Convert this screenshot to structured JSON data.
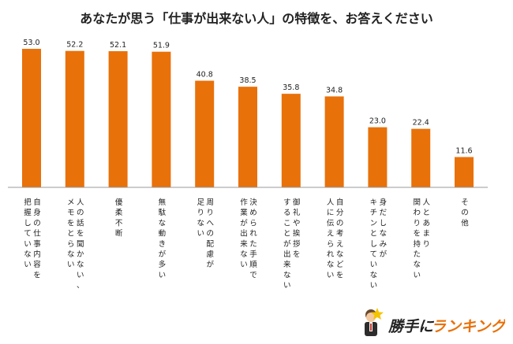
{
  "chart_data": {
    "type": "bar",
    "title": "あなたが思う「仕事が出来ない人」の特徴を、お答えください",
    "categories": [
      [
        "自身の仕事内容を",
        "把握していない"
      ],
      [
        "人の話を聞かない、",
        "メモをとらない"
      ],
      [
        "優柔不断"
      ],
      [
        "無駄な動きが多い"
      ],
      [
        "周りへの配慮が",
        "足りない"
      ],
      [
        "決められた手順で",
        "作業が出来ない"
      ],
      [
        "御礼や挨拶を",
        "することが出来ない"
      ],
      [
        "自分の考えなどを",
        "人に伝えられない"
      ],
      [
        "身だしなみが",
        "キチンとしていない"
      ],
      [
        "人とあまり",
        "関わりを持たない"
      ],
      [
        "その他"
      ]
    ],
    "values": [
      53.0,
      52.2,
      52.1,
      51.9,
      40.8,
      38.5,
      35.8,
      34.8,
      23.0,
      22.4,
      11.6
    ],
    "value_labels": [
      "53.0",
      "52.2",
      "52.1",
      "51.9",
      "40.8",
      "38.5",
      "35.8",
      "34.8",
      "23.0",
      "22.4",
      "11.6"
    ],
    "ylim": [
      0,
      60
    ],
    "bar_color": "#e8710a",
    "axis_color": "#999999",
    "grid": false,
    "legend": "none"
  },
  "logo": {
    "text_main": "勝手に",
    "text_accent": "ランキング",
    "main_color": "#222222",
    "accent_color": "#e8710a",
    "star_color": "#f5c400"
  }
}
